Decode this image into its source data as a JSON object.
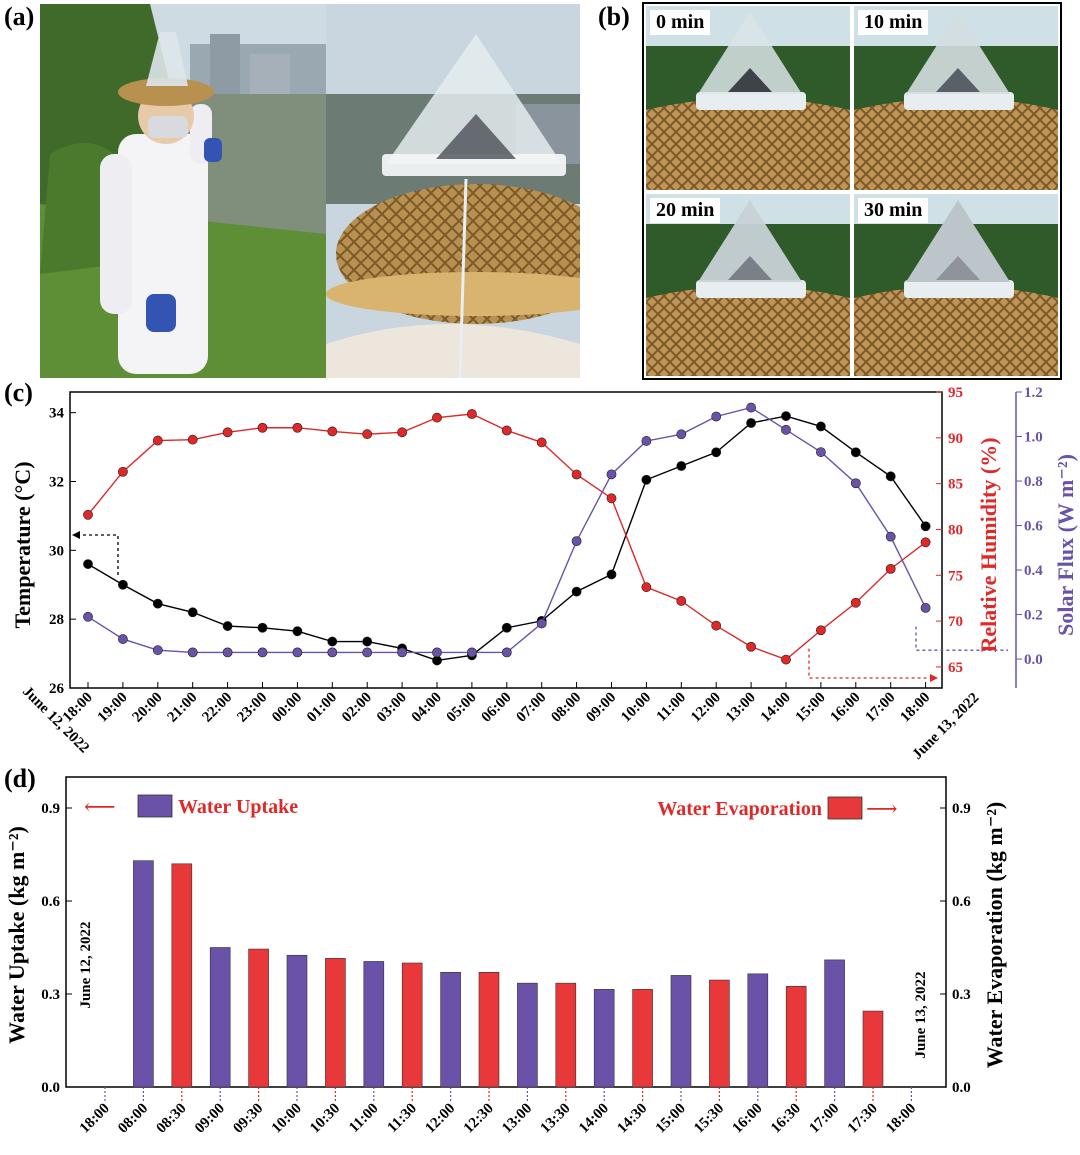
{
  "panel_labels": {
    "a": "(a)",
    "b": "(b)",
    "c": "(c)",
    "d": "(d)"
  },
  "photo_tags": [
    "0 min",
    "10 min",
    "20 min",
    "30 min"
  ],
  "colors": {
    "temperature": "#000000",
    "humidity": "#e02828",
    "solar": "#6a52a8",
    "uptake_bar": "#6a52a8",
    "evaporation_bar": "#e8383a",
    "sky": "#c8d8e4",
    "grass": "#5f8f3a",
    "bamboo": "#b8904f"
  },
  "chart_data": [
    {
      "type": "line",
      "x": [
        "18:00",
        "19:00",
        "20:00",
        "21:00",
        "22:00",
        "23:00",
        "00:00",
        "01:00",
        "02:00",
        "03:00",
        "04:00",
        "05:00",
        "06:00",
        "07:00",
        "08:00",
        "09:00",
        "10:00",
        "11:00",
        "12:00",
        "13:00",
        "14:00",
        "15:00",
        "16:00",
        "17:00",
        "18:00"
      ],
      "date_labels": {
        "start": "June 12, 2022",
        "end": "June 13, 2022"
      },
      "series": [
        {
          "name": "Temperature",
          "axis": "left",
          "values": [
            29.6,
            29.0,
            28.45,
            28.2,
            27.8,
            27.75,
            27.65,
            27.35,
            27.35,
            27.15,
            26.8,
            26.95,
            27.75,
            27.95,
            28.8,
            29.3,
            32.05,
            32.45,
            32.85,
            33.7,
            33.9,
            33.6,
            32.85,
            32.15,
            30.7
          ]
        },
        {
          "name": "Relative Humidity",
          "axis": "right1",
          "values": [
            81.6,
            86.3,
            89.7,
            89.8,
            90.6,
            91.1,
            91.1,
            90.7,
            90.4,
            90.6,
            92.2,
            92.6,
            90.8,
            89.5,
            86.0,
            83.4,
            73.7,
            72.2,
            69.5,
            67.2,
            65.8,
            69.0,
            72.0,
            75.7,
            78.6
          ]
        },
        {
          "name": "Solar Flux",
          "axis": "right2",
          "values": [
            0.19,
            0.09,
            0.04,
            0.03,
            0.03,
            0.03,
            0.03,
            0.03,
            0.03,
            0.03,
            0.03,
            0.03,
            0.03,
            0.16,
            0.53,
            0.83,
            0.98,
            1.01,
            1.09,
            1.13,
            1.03,
            0.93,
            0.79,
            0.55,
            0.23
          ]
        }
      ],
      "axes": {
        "left": {
          "label": "Temperature (°C)",
          "ylim": [
            26,
            34.6
          ],
          "ticks": [
            "26",
            "28",
            "30",
            "32",
            "34"
          ]
        },
        "right1": {
          "label": "Relative Humidity (%)",
          "ylim": [
            62.7,
            95
          ],
          "ticks": [
            "65",
            "70",
            "75",
            "80",
            "85",
            "90",
            "95"
          ]
        },
        "right2": {
          "label": "Solar Flux (W m⁻²)",
          "ylim": [
            -0.13,
            1.2
          ],
          "ticks": [
            "0.0",
            "0.2",
            "0.4",
            "0.6",
            "0.8",
            "1.0",
            "1.2"
          ]
        }
      },
      "grid": false
    },
    {
      "type": "bar",
      "categories": [
        "18:00",
        "08:00",
        "08:30",
        "09:00",
        "09:30",
        "10:00",
        "10:30",
        "11:00",
        "11:30",
        "12:00",
        "12:30",
        "13:00",
        "13:30",
        "14:00",
        "14:30",
        "15:00",
        "15:30",
        "16:00",
        "16:30",
        "17:00",
        "17:30",
        "18:00"
      ],
      "values": [
        null,
        0.73,
        0.72,
        0.45,
        0.445,
        0.425,
        0.415,
        0.405,
        0.4,
        0.37,
        0.37,
        0.335,
        0.335,
        0.315,
        0.315,
        0.36,
        0.345,
        0.365,
        0.325,
        0.41,
        0.245,
        null
      ],
      "series": [
        {
          "name": "Water Uptake",
          "indices": [
            1,
            3,
            5,
            7,
            9,
            11,
            13,
            15,
            17,
            19
          ]
        },
        {
          "name": "Water Evaporation",
          "indices": [
            2,
            4,
            6,
            8,
            10,
            12,
            14,
            16,
            18,
            20
          ]
        }
      ],
      "ylabel_left": "Water Uptake (kg m⁻²)",
      "ylabel_right": "Water Evaporation (kg m⁻²)",
      "ylim": [
        0,
        1.0
      ],
      "ticks": [
        "0.0",
        "0.3",
        "0.6",
        "0.9"
      ],
      "date_labels": {
        "start": "June 12, 2022",
        "end": "June 13, 2022"
      },
      "legend": {
        "left": "Water Uptake",
        "right": "Water Evaporation",
        "placement": "top"
      }
    }
  ]
}
